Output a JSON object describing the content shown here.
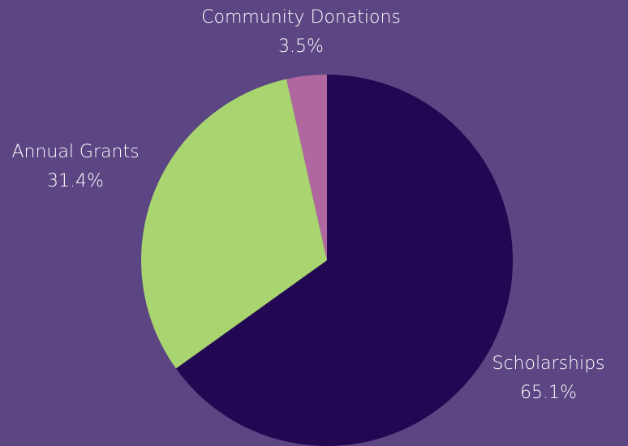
{
  "chart_data": {
    "type": "pie",
    "title": "",
    "legend": "none",
    "start_angle_deg": 0,
    "direction": "clockwise",
    "slices": [
      {
        "label": "Scholarships",
        "value": 65.1,
        "display": "65.1%",
        "color": "#220852"
      },
      {
        "label": "Annual Grants",
        "value": 31.4,
        "display": "31.4%",
        "color": "#a8d56f"
      },
      {
        "label": "Community Donations",
        "value": 3.5,
        "display": "3.5%",
        "color": "#b0679f"
      }
    ]
  },
  "colors": {
    "background": "#5c4583",
    "label_text": "#ffffff"
  }
}
